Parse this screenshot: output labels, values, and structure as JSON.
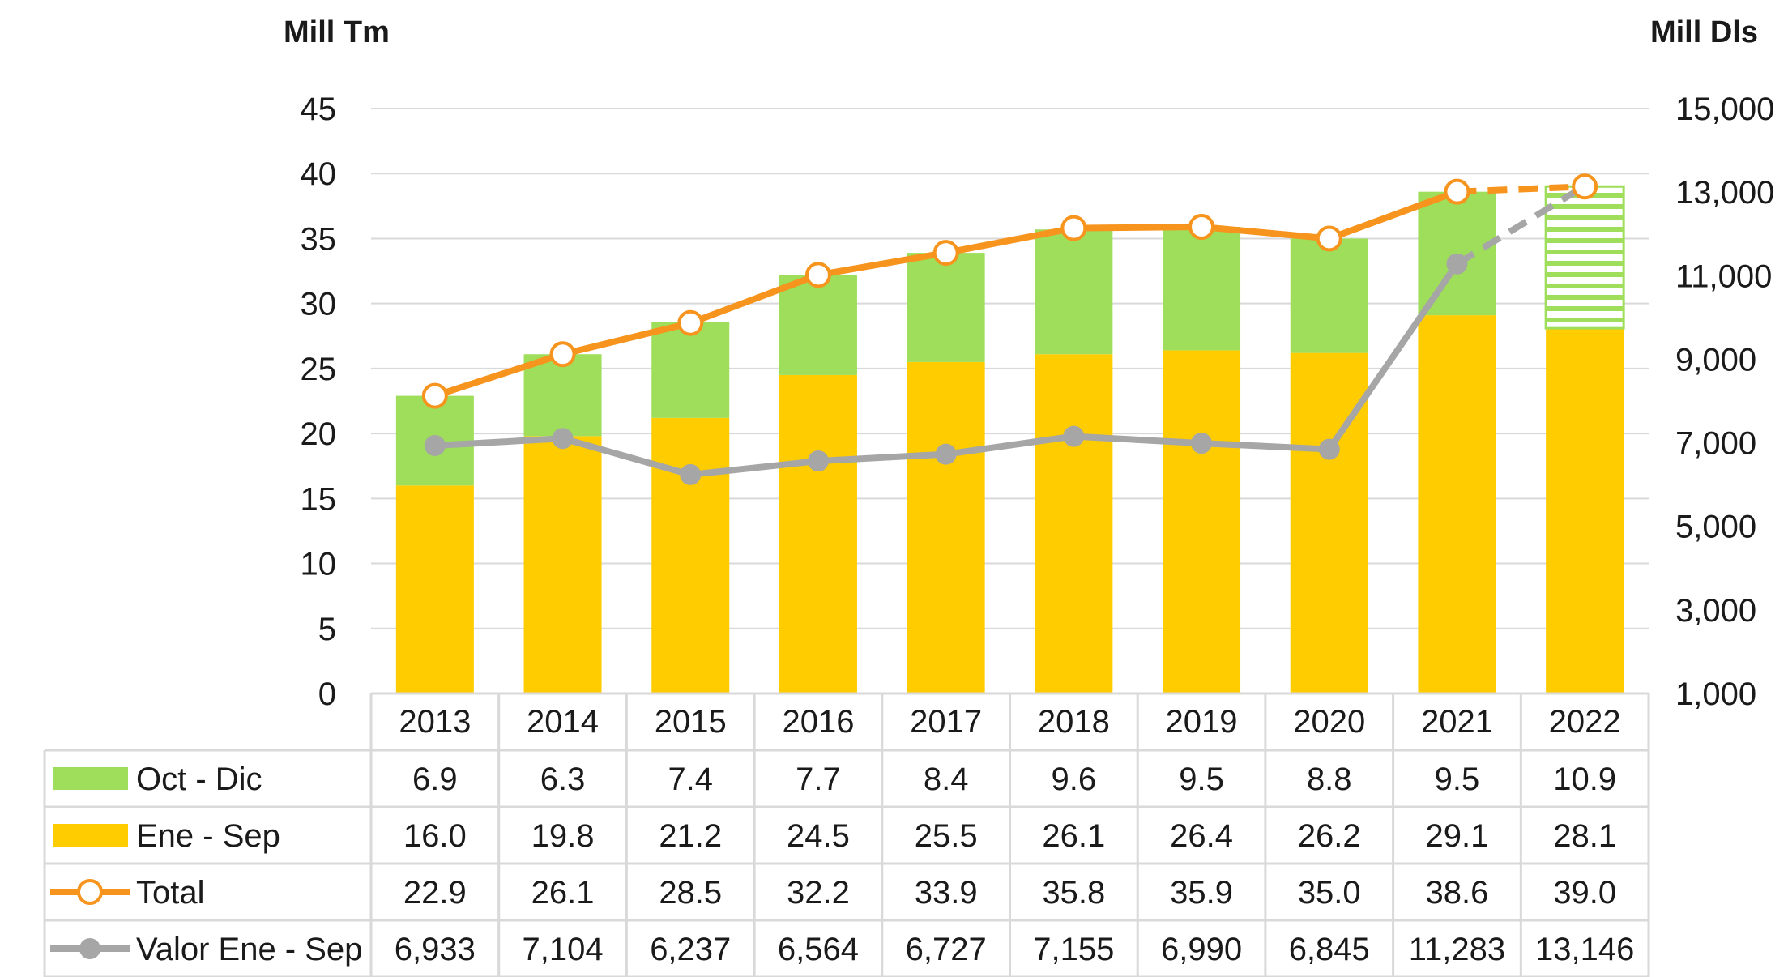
{
  "chart_data": {
    "type": "bar",
    "stacked": true,
    "categories": [
      "2013",
      "2014",
      "2015",
      "2016",
      "2017",
      "2018",
      "2019",
      "2020",
      "2021",
      "2022"
    ],
    "y_left": {
      "title": "Mill Tm",
      "min": 0,
      "max": 45,
      "step": 5,
      "ticks": [
        "0",
        "5",
        "10",
        "15",
        "20",
        "25",
        "30",
        "35",
        "40",
        "45"
      ]
    },
    "y_right": {
      "title": "Mill Dls",
      "min": 1000,
      "max": 15000,
      "step": 2000,
      "ticks": [
        "1,000",
        "3,000",
        "5,000",
        "7,000",
        "9,000",
        "11,000",
        "13,000",
        "15,000"
      ]
    },
    "grid": true,
    "legend": "data-table",
    "series": [
      {
        "name": "Oct - Dic",
        "kind": "bar",
        "axis": "left",
        "color": "#9ede5a",
        "values": [
          6.9,
          6.3,
          7.4,
          7.7,
          8.4,
          9.6,
          9.5,
          8.8,
          9.5,
          10.9
        ],
        "labels": [
          "6.9",
          "6.3",
          "7.4",
          "7.7",
          "8.4",
          "9.6",
          "9.5",
          "8.8",
          "9.5",
          "10.9"
        ],
        "hatched_last": true
      },
      {
        "name": "Ene - Sep",
        "kind": "bar",
        "axis": "left",
        "color": "#ffcc00",
        "values": [
          16.0,
          19.8,
          21.2,
          24.5,
          25.5,
          26.1,
          26.4,
          26.2,
          29.1,
          28.1
        ],
        "labels": [
          "16.0",
          "19.8",
          "21.2",
          "24.5",
          "25.5",
          "26.1",
          "26.4",
          "26.2",
          "29.1",
          "28.1"
        ]
      },
      {
        "name": "Total",
        "kind": "line",
        "axis": "left",
        "color": "#f7941d",
        "marker": "hollow",
        "values": [
          22.9,
          26.1,
          28.5,
          32.2,
          33.9,
          35.8,
          35.9,
          35.0,
          38.6,
          39.0
        ],
        "labels": [
          "22.9",
          "26.1",
          "28.5",
          "32.2",
          "33.9",
          "35.8",
          "35.9",
          "35.0",
          "38.6",
          "39.0"
        ],
        "dashed_last": true
      },
      {
        "name": "Valor Ene - Sep",
        "kind": "line",
        "axis": "right",
        "color": "#a6a6a6",
        "marker": "filled",
        "values": [
          6933,
          7104,
          6237,
          6564,
          6727,
          7155,
          6990,
          6845,
          11283,
          13146
        ],
        "labels": [
          "6,933",
          "7,104",
          "6,237",
          "6,564",
          "6,727",
          "7,155",
          "6,990",
          "6,845",
          "11,283",
          "13,146"
        ],
        "dashed_last": true
      }
    ]
  }
}
